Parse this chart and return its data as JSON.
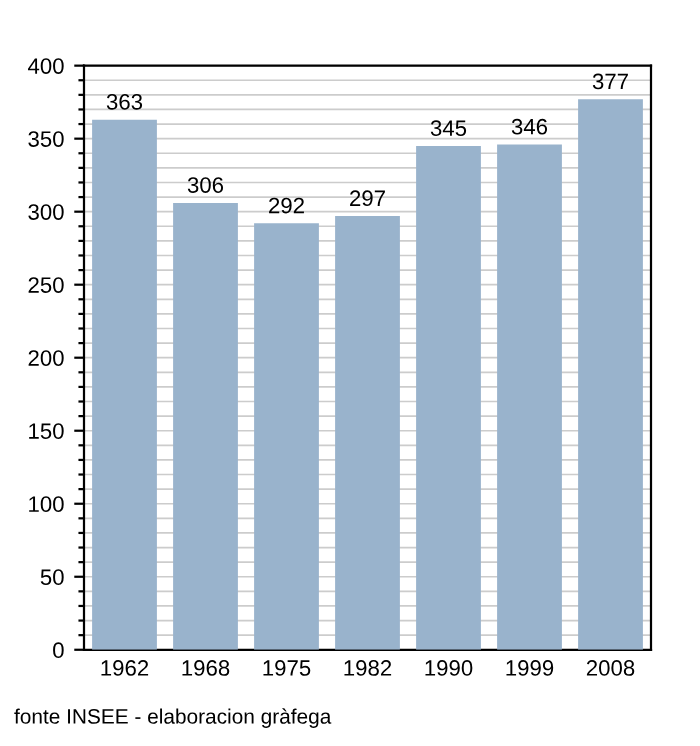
{
  "chart_data": {
    "type": "bar",
    "categories": [
      "1962",
      "1968",
      "1975",
      "1982",
      "1990",
      "1999",
      "2008"
    ],
    "values": [
      363,
      306,
      292,
      297,
      345,
      346,
      377
    ],
    "color": "#99b3cc",
    "data_labels": true,
    "ylim": [
      0,
      400
    ],
    "yticks": [
      0,
      {
        "value": 10,
        "label": null
      },
      {
        "value": 20,
        "label": null
      },
      {
        "value": 30,
        "label": null
      },
      {
        "value": 40,
        "label": null
      },
      50,
      {
        "value": 60,
        "label": null
      },
      {
        "value": 70,
        "label": null
      },
      {
        "value": 80,
        "label": null
      },
      {
        "value": 90,
        "label": null
      },
      100,
      {
        "value": 110,
        "label": null
      },
      {
        "value": 120,
        "label": null
      },
      {
        "value": 130,
        "label": null
      },
      {
        "value": 140,
        "label": null
      },
      150,
      {
        "value": 160,
        "label": null
      },
      {
        "value": 170,
        "label": null
      },
      {
        "value": 180,
        "label": null
      },
      {
        "value": 190,
        "label": null
      },
      200,
      {
        "value": 210,
        "label": null
      },
      {
        "value": 220,
        "label": null
      },
      {
        "value": 230,
        "label": null
      },
      {
        "value": 240,
        "label": null
      },
      250,
      {
        "value": 260,
        "label": null
      },
      {
        "value": 270,
        "label": null
      },
      {
        "value": 280,
        "label": null
      },
      {
        "value": 290,
        "label": null
      },
      300,
      {
        "value": 310,
        "label": null
      },
      {
        "value": 320,
        "label": null
      },
      {
        "value": 330,
        "label": null
      },
      {
        "value": 340,
        "label": null
      },
      350,
      {
        "value": 360,
        "label": null
      },
      {
        "value": 370,
        "label": null
      },
      {
        "value": 380,
        "label": null
      },
      {
        "value": 390,
        "label": null
      },
      400
    ],
    "grid": "y",
    "annotations": [
      "fonte INSEE - elaboracion gràfega"
    ]
  }
}
